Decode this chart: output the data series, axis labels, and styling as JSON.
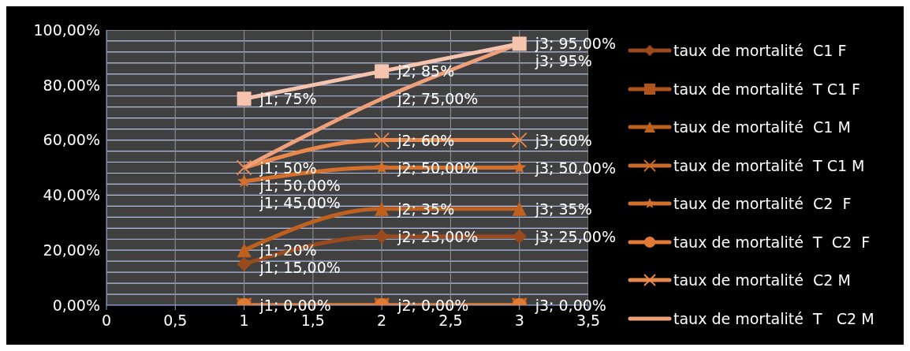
{
  "chart_data": {
    "type": "line",
    "x": [
      1,
      2,
      3
    ],
    "xlim": [
      0,
      3.5
    ],
    "xticks": [
      0,
      {
        "value": 0.5,
        "label": "0,5"
      },
      1,
      {
        "value": 1.5,
        "label": "1,5"
      },
      2,
      {
        "value": 2.5,
        "label": "2,5"
      },
      3,
      {
        "value": 3.5,
        "label": "3,5"
      }
    ],
    "ylim": [
      0,
      100
    ],
    "yticks": [
      {
        "value": 0,
        "label": "0,00%"
      },
      {
        "value": 4,
        "label": null
      },
      {
        "value": 8,
        "label": null
      },
      {
        "value": 12,
        "label": null
      },
      {
        "value": 16,
        "label": null
      },
      {
        "value": 20,
        "label": "20,00%"
      },
      {
        "value": 24,
        "label": null
      },
      {
        "value": 28,
        "label": null
      },
      {
        "value": 32,
        "label": null
      },
      {
        "value": 36,
        "label": null
      },
      {
        "value": 40,
        "label": "40,00%"
      },
      {
        "value": 44,
        "label": null
      },
      {
        "value": 48,
        "label": null
      },
      {
        "value": 52,
        "label": null
      },
      {
        "value": 56,
        "label": null
      },
      {
        "value": 60,
        "label": "60,00%"
      },
      {
        "value": 64,
        "label": null
      },
      {
        "value": 68,
        "label": null
      },
      {
        "value": 72,
        "label": null
      },
      {
        "value": 76,
        "label": null
      },
      {
        "value": 80,
        "label": "80,00%"
      },
      {
        "value": 84,
        "label": null
      },
      {
        "value": 88,
        "label": null
      },
      {
        "value": 92,
        "label": null
      },
      {
        "value": 96,
        "label": null
      },
      {
        "value": 100,
        "label": "100,00%"
      }
    ],
    "grid": true,
    "legend": "right",
    "line_style": "solid",
    "series": [
      {
        "name": "taux de mortalité  C1 F",
        "color": "#9a4a1c",
        "marker": "diamond",
        "values": [
          15,
          25,
          25
        ],
        "value_labels": [
          "j1; 15,00%",
          "j2; 25,00%",
          "j3; 25,00%"
        ]
      },
      {
        "name": "taux de mortalité  T C1 F",
        "color": "#b0541c",
        "marker": "square",
        "values": [
          0,
          0,
          0
        ],
        "value_labels": [
          "j1; 0,00%",
          "j2; 0,00%",
          "j3; 0,00%"
        ]
      },
      {
        "name": "taux de mortalité  C1 M",
        "color": "#c0601e",
        "marker": "triangle",
        "values": [
          20,
          35,
          35
        ],
        "value_labels": [
          "j1; 20%",
          "j2; 35%",
          "j3; 35%"
        ]
      },
      {
        "name": "taux de mortalité  T C1 M",
        "color": "#c96a2a",
        "marker": "cross",
        "values": [
          0,
          0,
          0
        ]
      },
      {
        "name": "taux de mortalité  C2  F",
        "color": "#d4702c",
        "marker": "star",
        "values": [
          45,
          50,
          50
        ],
        "value_labels": [
          "j1; 45,00%",
          "j2; 50,00%",
          "j3; 50,00%"
        ]
      },
      {
        "name": "taux de mortalité  T  C2  F",
        "color": "#e07a34",
        "marker": "circle",
        "values": [
          0,
          0,
          0
        ]
      },
      {
        "name": "taux de mortalité  C2 M",
        "color": "#e8884c",
        "marker": "cross",
        "values": [
          50,
          60,
          60
        ],
        "value_labels": [
          "j1; 50%",
          "j2; 60%",
          "j3; 60%"
        ]
      },
      {
        "name": "taux de mortalité  T   C2 M",
        "color": "#eda07a",
        "marker": "none",
        "values": [
          50,
          75,
          95
        ],
        "value_labels": [
          "j1; 50,00%",
          "j2; 75,00%",
          "j3; 95,00%"
        ]
      },
      {
        "color": "#f6c4ae",
        "marker": "square",
        "values": [
          75,
          85,
          95
        ],
        "value_labels": [
          "j1; 75%",
          "j2; 85%",
          "j3; 95%"
        ]
      }
    ]
  }
}
